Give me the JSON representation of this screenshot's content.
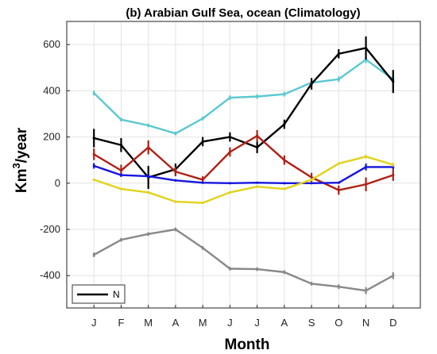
{
  "chart_data": {
    "type": "line",
    "title": "(b) Arabian Gulf Sea, ocean (Climatology)",
    "xlabel": "Month",
    "ylabel_base": "Km",
    "ylabel_sup": "3",
    "ylabel_tail": "/year",
    "categories": [
      "J",
      "F",
      "M",
      "A",
      "M",
      "J",
      "J",
      "A",
      "S",
      "O",
      "N",
      "D"
    ],
    "ylim": [
      -540,
      700
    ],
    "yticks": [
      -400,
      -200,
      0,
      200,
      400,
      600
    ],
    "ytick_labels": [
      "-400",
      "-200",
      "0",
      "200",
      "400",
      "600"
    ],
    "grid": true,
    "legend": {
      "placement": "bottom-left",
      "entries": [
        {
          "label": "N",
          "color": "#000000"
        }
      ]
    },
    "series": [
      {
        "color": "#5BC8D0",
        "values": [
          390,
          275,
          250,
          215,
          280,
          370,
          375,
          385,
          435,
          450,
          535,
          450
        ],
        "err": [
          10,
          8,
          8,
          8,
          8,
          10,
          10,
          10,
          10,
          12,
          15,
          20
        ]
      },
      {
        "color": "#000000",
        "values": [
          195,
          165,
          25,
          60,
          180,
          200,
          155,
          255,
          430,
          560,
          585,
          440
        ],
        "err": [
          40,
          30,
          50,
          25,
          20,
          20,
          25,
          20,
          25,
          20,
          50,
          50
        ]
      },
      {
        "color": "#B02015",
        "values": [
          125,
          55,
          155,
          50,
          15,
          135,
          205,
          100,
          25,
          -30,
          -5,
          35
        ],
        "err": [
          25,
          25,
          30,
          20,
          15,
          20,
          25,
          20,
          20,
          20,
          30,
          25
        ]
      },
      {
        "color": "#1515E0",
        "values": [
          75,
          35,
          30,
          12,
          2,
          0,
          2,
          0,
          0,
          2,
          70,
          70
        ],
        "err": [
          12,
          8,
          8,
          5,
          3,
          3,
          3,
          3,
          3,
          3,
          15,
          10
        ]
      },
      {
        "color": "#E2D21A",
        "values": [
          15,
          -25,
          -40,
          -80,
          -85,
          -40,
          -15,
          -25,
          15,
          85,
          115,
          80
        ],
        "err": [
          5,
          5,
          5,
          5,
          5,
          5,
          5,
          5,
          5,
          5,
          8,
          8
        ]
      },
      {
        "color": "#888888",
        "values": [
          -310,
          -245,
          -220,
          -200,
          -280,
          -370,
          -372,
          -385,
          -435,
          -448,
          -465,
          -400
        ],
        "err": [
          10,
          8,
          8,
          8,
          8,
          8,
          8,
          8,
          8,
          10,
          15,
          15
        ]
      }
    ]
  }
}
